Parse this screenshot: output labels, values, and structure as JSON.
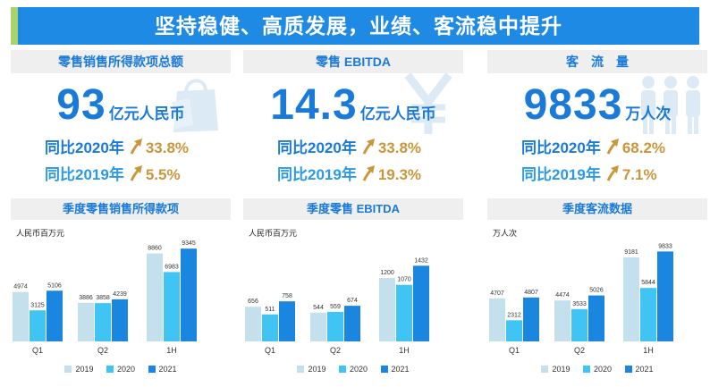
{
  "title": "坚持稳健、高质发展，业绩、客流稳中提升",
  "colors": {
    "title_bar": "#1f8ae3",
    "title_accent": "#a8d36b",
    "primary_text": "#1a7ad9",
    "percent_text": "#c9963a",
    "series_2019": "#c4e0ec",
    "series_2020": "#3fc4f3",
    "series_2021": "#1a86e0"
  },
  "kpis": [
    {
      "header": "零售销售所得款项总额",
      "icon": "shopping-bag-icon",
      "value": "93",
      "unit": "亿元人民币",
      "rows": [
        {
          "label": "同比2020年",
          "arrow": "up-arrow-icon",
          "percent": "33.8%"
        },
        {
          "label": "同比2019年",
          "arrow": "up-arrow-icon",
          "percent": "5.5%"
        }
      ]
    },
    {
      "header": "零售 EBITDA",
      "icon": "yuan-icon",
      "value": "14.3",
      "unit": "亿元人民币",
      "rows": [
        {
          "label": "同比2020年",
          "arrow": "up-arrow-icon",
          "percent": "33.8%"
        },
        {
          "label": "同比2019年",
          "arrow": "up-arrow-icon",
          "percent": "19.3%"
        }
      ]
    },
    {
      "header": "客　流　量",
      "icon": "people-icon",
      "value": "9833",
      "unit": "万人次",
      "rows": [
        {
          "label": "同比2020年",
          "arrow": "up-arrow-icon",
          "percent": "68.2%"
        },
        {
          "label": "同比2019年",
          "arrow": "up-arrow-icon",
          "percent": "7.1%"
        }
      ]
    }
  ],
  "chart_data": [
    {
      "type": "bar",
      "title": "季度零售销售所得款项",
      "ylabel": "人民币百万元",
      "categories": [
        "Q1",
        "Q2",
        "1H"
      ],
      "series": [
        {
          "name": "2019",
          "values": [
            4974,
            3886,
            8860
          ]
        },
        {
          "name": "2020",
          "values": [
            3125,
            3858,
            6983
          ]
        },
        {
          "name": "2021",
          "values": [
            5106,
            4239,
            9345
          ]
        }
      ],
      "ylim": [
        0,
        9900
      ],
      "grid": false,
      "legend": "bottom"
    },
    {
      "type": "bar",
      "title": "季度零售 EBITDA",
      "ylabel": "人民币百万元",
      "categories": [
        "Q1",
        "Q2",
        "1H"
      ],
      "series": [
        {
          "name": "2019",
          "values": [
            656,
            544,
            1200
          ]
        },
        {
          "name": "2020",
          "values": [
            511,
            559,
            1070
          ]
        },
        {
          "name": "2021",
          "values": [
            758,
            674,
            1432
          ]
        }
      ],
      "ylim": [
        0,
        1860
      ],
      "grid": false,
      "legend": "bottom"
    },
    {
      "type": "bar",
      "title": "季度客流数据",
      "ylabel": "万人次",
      "categories": [
        "Q1",
        "Q2",
        "1H"
      ],
      "series": [
        {
          "name": "2019",
          "values": [
            4707,
            4474,
            9181
          ]
        },
        {
          "name": "2020",
          "values": [
            2312,
            3533,
            5844
          ]
        },
        {
          "name": "2021",
          "values": [
            4807,
            5026,
            9833
          ]
        }
      ],
      "ylim": [
        0,
        10750
      ],
      "grid": false,
      "legend": "bottom"
    }
  ]
}
